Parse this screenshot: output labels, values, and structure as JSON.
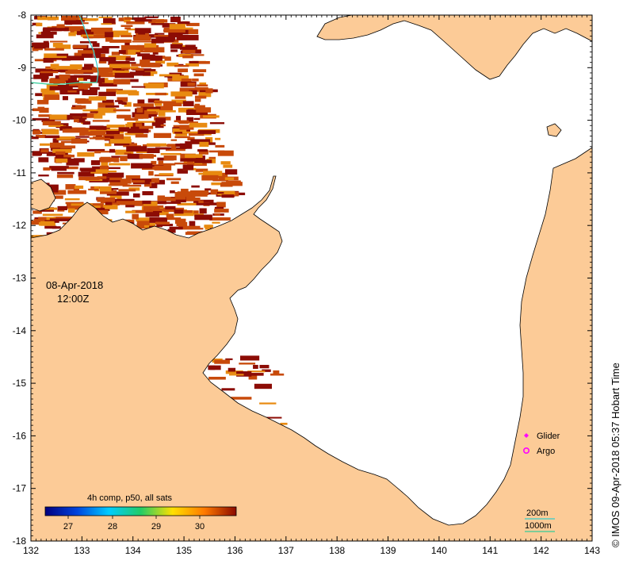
{
  "map": {
    "date": "08-Apr-2018",
    "time": "12:00Z",
    "credit": "© IMOS 09-Apr-2018 05:37 Hobart Time",
    "colors": {
      "land": "#fccb97",
      "ocean_background": "#ffffff",
      "sst_dark": "#8c0c05",
      "sst_mid": "#c84a0a",
      "sst_light": "#e88a10",
      "isobath_200m": "#33cccc",
      "isobath_1000m": "#33cc99",
      "glider": "#ff00ff",
      "argo": "#ff00ff"
    },
    "x_axis": {
      "ticks": [
        "132",
        "133",
        "134",
        "135",
        "136",
        "137",
        "138",
        "139",
        "140",
        "141",
        "142",
        "143"
      ]
    },
    "y_axis": {
      "ticks": [
        "-8",
        "-9",
        "-10",
        "-11",
        "-12",
        "-13",
        "-14",
        "-15",
        "-16",
        "-17",
        "-18"
      ]
    },
    "colorbar": {
      "title": "4h comp, p50, all sats",
      "labels": [
        "27",
        "28",
        "29",
        "30"
      ],
      "stops": [
        "#00007f",
        "#0044dd",
        "#00ccff",
        "#22cc66",
        "#ffe000",
        "#ff7a00",
        "#8b0a00"
      ]
    },
    "legend": {
      "glider": "Glider",
      "argo": "Argo",
      "isobath_200m": "200m",
      "isobath_1000m": "1000m",
      "glider_icon": "diamond-marker-icon",
      "argo_icon": "circle-marker-icon"
    }
  }
}
